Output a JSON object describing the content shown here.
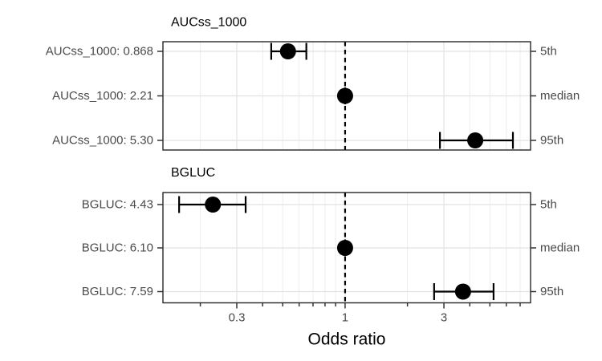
{
  "figure": {
    "xlabel": "Odds ratio",
    "background_color": "#ffffff",
    "point_color": "#000000",
    "panel_border_color": "#262626",
    "grid_major_color": "#e2e2e2",
    "grid_minor_color": "#ededed",
    "axis_text_color": "#4a4a4a",
    "tick_color": "#333333"
  },
  "chart_data": {
    "type": "scatter",
    "subtype": "forest-plot-with-error-bars",
    "title": "",
    "xlabel": "Odds ratio",
    "ylabel": "",
    "x_scale": "log10",
    "x_range": [
      0.132,
      7.86
    ],
    "x_major_ticks": [
      0.3,
      1,
      3
    ],
    "x_major_tick_labels": [
      "0.3",
      "1",
      "3"
    ],
    "x_minor_ticks": [
      0.2,
      0.4,
      0.5,
      0.6,
      0.7,
      0.8,
      0.9,
      2,
      4,
      5,
      6,
      7
    ],
    "reference_line_x": 1,
    "reference_line_style": "dashed",
    "grid": true,
    "legend": "none",
    "panels": [
      {
        "title": "AUCss_1000",
        "rows": [
          {
            "label": "AUCss_1000: 0.868",
            "percentile": "5th",
            "odds_ratio": 0.53,
            "ci_low": 0.44,
            "ci_high": 0.65
          },
          {
            "label": "AUCss_1000: 2.21",
            "percentile": "median",
            "odds_ratio": 1.0,
            "ci_low": 1.0,
            "ci_high": 1.0
          },
          {
            "label": "AUCss_1000: 5.30",
            "percentile": "95th",
            "odds_ratio": 4.25,
            "ci_low": 2.87,
            "ci_high": 6.46
          }
        ]
      },
      {
        "title": "BGLUC",
        "rows": [
          {
            "label": "BGLUC: 4.43",
            "percentile": "5th",
            "odds_ratio": 0.23,
            "ci_low": 0.158,
            "ci_high": 0.331
          },
          {
            "label": "BGLUC: 6.10",
            "percentile": "median",
            "odds_ratio": 1.0,
            "ci_low": 1.0,
            "ci_high": 1.0
          },
          {
            "label": "BGLUC: 7.59",
            "percentile": "95th",
            "odds_ratio": 3.71,
            "ci_low": 2.69,
            "ci_high": 5.21
          }
        ]
      }
    ]
  }
}
